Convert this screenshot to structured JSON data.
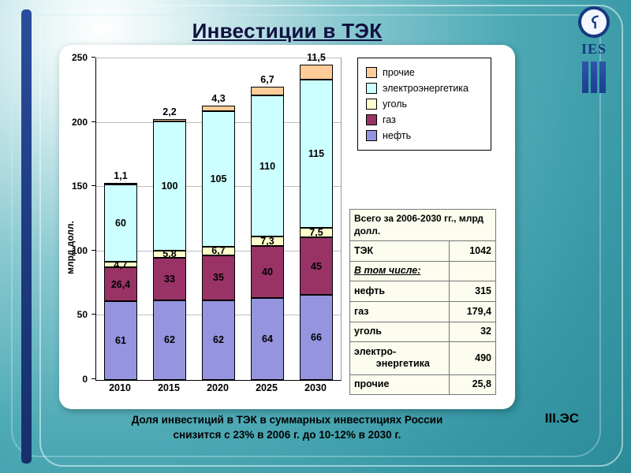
{
  "slide": {
    "title": "Инвестиции в ТЭК",
    "caption_line1": "Доля инвестиций в ТЭК в суммарных инвестициях России",
    "caption_line2": "снизится с 23% в 2006 г. до 10-12% в 2030 г.",
    "footer_code": "III.ЭС",
    "logo": {
      "text": "IES"
    }
  },
  "chart_data": {
    "type": "bar",
    "subtype": "stacked",
    "ylabel": "млрд долл.",
    "ylim": [
      0,
      250
    ],
    "yticks": [
      0,
      50,
      100,
      150,
      200,
      250
    ],
    "grid": true,
    "categories": [
      "2010",
      "2015",
      "2020",
      "2025",
      "2030"
    ],
    "series": [
      {
        "name": "нефть",
        "color": "#9494df",
        "values": [
          61,
          62,
          62,
          64,
          66
        ],
        "labels": [
          "61",
          "62",
          "62",
          "64",
          "66"
        ],
        "label_pos": "inside"
      },
      {
        "name": "газ",
        "color": "#993366",
        "values": [
          26.4,
          33,
          35,
          40,
          45
        ],
        "labels": [
          "26,4",
          "33",
          "35",
          "40",
          "45"
        ],
        "label_pos": "inside"
      },
      {
        "name": "уголь",
        "color": "#ffffcc",
        "values": [
          4.7,
          5.8,
          6.7,
          7.3,
          7.5
        ],
        "labels": [
          "4,7",
          "5,8",
          "6,7",
          "7,3",
          "7,5"
        ],
        "label_pos": "inside"
      },
      {
        "name": "электроэнергетика",
        "color": "#ccffff",
        "values": [
          60,
          100,
          105,
          110,
          115
        ],
        "labels": [
          "60",
          "100",
          "105",
          "110",
          "115"
        ],
        "label_pos": "inside"
      },
      {
        "name": "прочие",
        "color": "#ffcc99",
        "values": [
          1.1,
          2.2,
          4.3,
          6.7,
          11.5
        ],
        "labels": [
          "1,1",
          "2,2",
          "4,3",
          "6,7",
          "11,5"
        ],
        "label_pos": "above"
      }
    ],
    "legend": [
      "прочие",
      "электроэнергетика",
      "уголь",
      "газ",
      "нефть"
    ],
    "legend_position": "top-right"
  },
  "table": {
    "header": "Всего за 2006-2030 гг., млрд долл.",
    "rows": [
      {
        "label": "ТЭК",
        "value": "1042",
        "style": "normal"
      },
      {
        "label": "В том числе:",
        "value": "",
        "style": "italic-underline"
      },
      {
        "label": "нефть",
        "value": "315",
        "style": "normal"
      },
      {
        "label": "газ",
        "value": "179,4",
        "style": "normal"
      },
      {
        "label": "уголь",
        "value": "32",
        "style": "normal"
      },
      {
        "label": "электро-\n        энергетика",
        "value": "490",
        "style": "normal"
      },
      {
        "label": "прочие",
        "value": "25,8",
        "style": "normal"
      }
    ]
  }
}
